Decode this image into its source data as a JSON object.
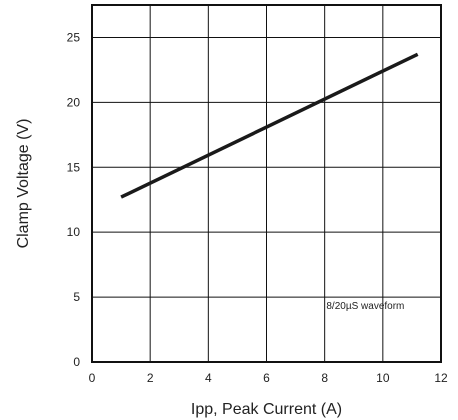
{
  "chart_data": {
    "type": "line",
    "xlabel": "Ipp, Peak Current (A)",
    "ylabel": "Clamp Voltage (V)",
    "xlim": [
      0,
      12
    ],
    "ylim": [
      0,
      27.5
    ],
    "x_ticks": [
      "0",
      "2",
      "4",
      "6",
      "8",
      "10",
      "12"
    ],
    "y_ticks": [
      "0",
      "5",
      "10",
      "15",
      "20",
      "25"
    ],
    "grid": true,
    "series": [
      {
        "x": [
          1.0,
          11.2
        ],
        "y": [
          12.7,
          23.7
        ],
        "color": "#1a1a1a"
      }
    ],
    "annotations": [
      {
        "text": "8/20µS waveform",
        "x": 9.4,
        "y": 4.1
      }
    ]
  }
}
